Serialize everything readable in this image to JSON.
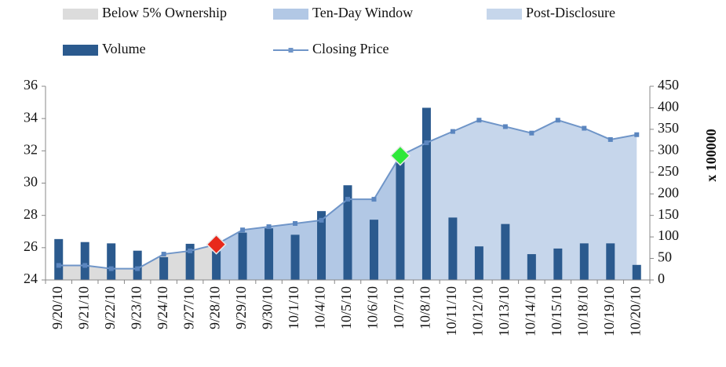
{
  "chart_data": {
    "type": "combo",
    "categories": [
      "9/20/10",
      "9/21/10",
      "9/22/10",
      "9/23/10",
      "9/24/10",
      "9/27/10",
      "9/28/10",
      "9/29/10",
      "9/30/10",
      "10/1/10",
      "10/4/10",
      "10/5/10",
      "10/6/10",
      "10/7/10",
      "10/8/10",
      "10/11/10",
      "10/12/10",
      "10/13/10",
      "10/14/10",
      "10/15/10",
      "10/18/10",
      "10/19/10",
      "10/20/10"
    ],
    "series": [
      {
        "name": "Below 5% Ownership",
        "kind": "area",
        "color": "#dcdcdc",
        "values": [
          24.9,
          24.9,
          24.7,
          24.7,
          25.6,
          25.8,
          26.2,
          null,
          null,
          null,
          null,
          null,
          null,
          null,
          null,
          null,
          null,
          null,
          null,
          null,
          null,
          null,
          null
        ]
      },
      {
        "name": "Ten-Day Window",
        "kind": "area",
        "color": "#b2c8e5",
        "values": [
          null,
          null,
          null,
          null,
          null,
          null,
          26.2,
          27.1,
          27.3,
          27.5,
          27.7,
          29.0,
          29.0,
          31.7,
          null,
          null,
          null,
          null,
          null,
          null,
          null,
          null,
          null
        ]
      },
      {
        "name": "Post-Disclosure",
        "kind": "area",
        "color": "#c6d6eb",
        "values": [
          null,
          null,
          null,
          null,
          null,
          null,
          null,
          null,
          null,
          null,
          null,
          null,
          null,
          31.7,
          32.5,
          33.2,
          33.9,
          33.5,
          33.1,
          33.9,
          33.4,
          32.7,
          33.0
        ]
      },
      {
        "name": "Volume",
        "kind": "bar",
        "axis": "y2",
        "color": "#2b5a8e",
        "values": [
          95,
          88,
          85,
          68,
          53,
          84,
          67,
          110,
          120,
          105,
          160,
          220,
          140,
          280,
          400,
          145,
          78,
          130,
          60,
          73,
          85,
          85,
          35
        ]
      },
      {
        "name": "Closing Price",
        "kind": "line",
        "color": "#6f95c8",
        "values": [
          24.9,
          24.9,
          24.7,
          24.7,
          25.6,
          25.8,
          26.2,
          27.1,
          27.3,
          27.5,
          27.7,
          29.0,
          29.0,
          31.7,
          32.5,
          33.2,
          33.9,
          33.5,
          33.1,
          33.9,
          33.4,
          32.7,
          33.0
        ]
      }
    ],
    "markers": [
      {
        "category": "9/28/10",
        "color": "#e8291c"
      },
      {
        "category": "10/7/10",
        "color": "#2ee83a"
      }
    ],
    "ylim": [
      24,
      36
    ],
    "yticks": [
      24,
      26,
      28,
      30,
      32,
      34,
      36
    ],
    "y2lim": [
      0,
      450
    ],
    "y2ticks": [
      0,
      50,
      100,
      150,
      200,
      250,
      300,
      350,
      400,
      450
    ],
    "y2label": "x 100000",
    "grid": false
  }
}
